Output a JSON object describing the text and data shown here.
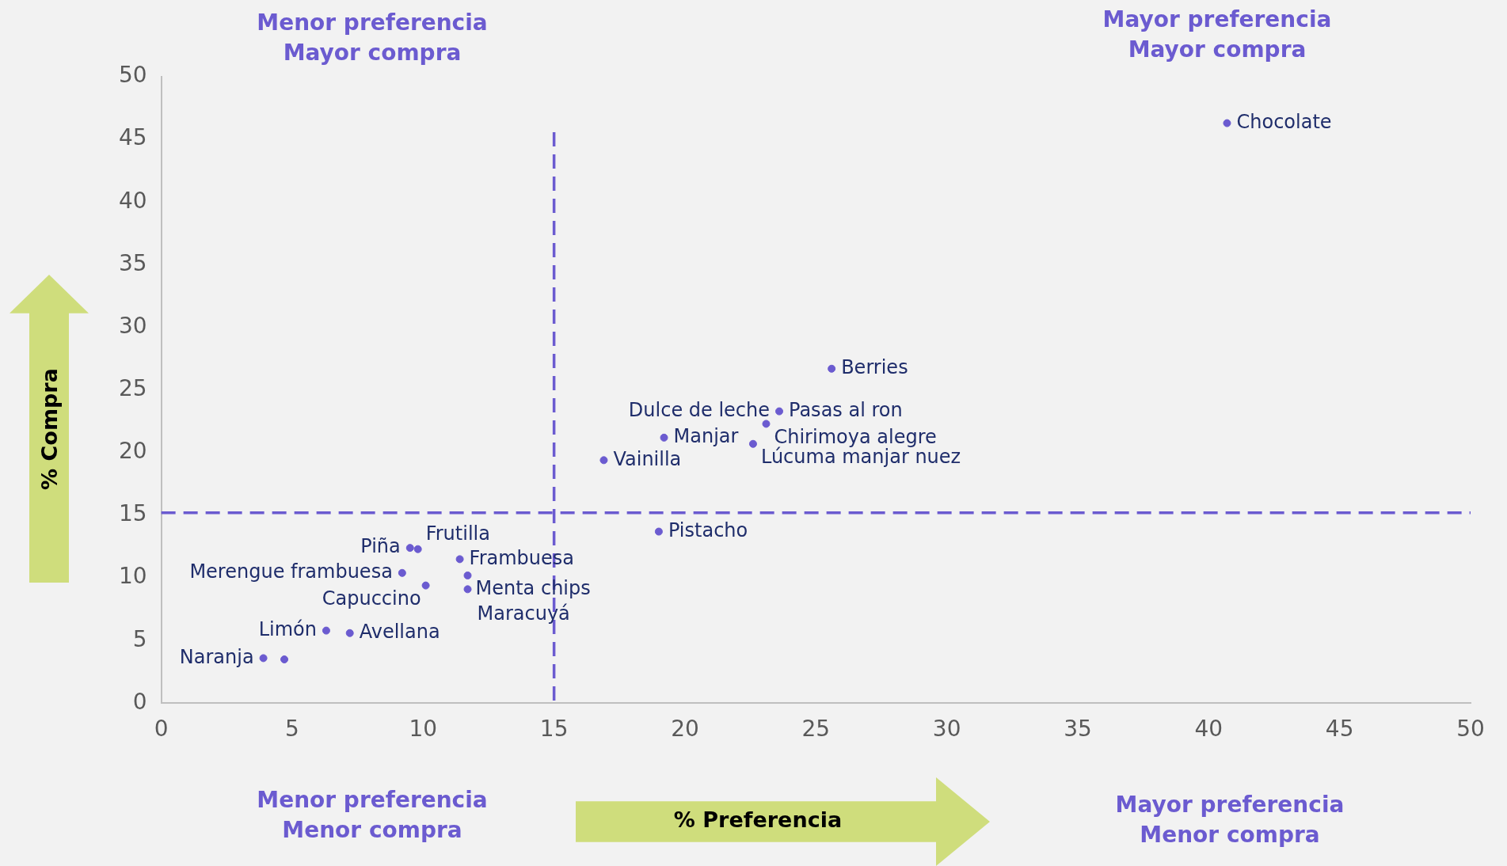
{
  "chart_data": {
    "type": "scatter",
    "xlabel": "% Preferencia",
    "ylabel": "% Compra",
    "x": [
      40.7,
      25.6,
      23.6,
      23.1,
      19.2,
      22.6,
      16.9,
      19.0,
      9.5,
      9.8,
      11.4,
      9.2,
      11.7,
      10.1,
      11.7,
      6.3,
      7.2,
      3.9,
      4.7
    ],
    "series": [
      {
        "color": "#6b5bd0",
        "values": [
          46.3,
          26.7,
          23.3,
          22.3,
          21.2,
          20.7,
          19.4,
          13.7,
          12.4,
          12.3,
          11.5,
          10.4,
          10.2,
          9.4,
          9.1,
          5.8,
          5.6,
          3.6,
          3.5
        ]
      }
    ],
    "annotations": [
      "Menor preferencia\nMayor compra",
      "Mayor preferencia\nMayor compra",
      "Menor preferencia\nMenor compra",
      "Mayor preferencia\nMenor compra",
      {
        "text": "Chocolate",
        "x": 40.7,
        "y": 46.3
      },
      {
        "text": "Berries",
        "x": 25.6,
        "y": 26.7
      },
      {
        "text": "Pasas al ron",
        "x": 23.6,
        "y": 23.3
      },
      {
        "text": "Dulce de leche",
        "x": 23.6,
        "y": 23.3
      },
      {
        "text": "Chirimoya alegre",
        "x": 23.1,
        "y": 22.3
      },
      {
        "text": "Manjar",
        "x": 19.2,
        "y": 21.2
      },
      {
        "text": "Lúcuma manjar nuez",
        "x": 22.6,
        "y": 20.7
      },
      {
        "text": "Vainilla",
        "x": 16.9,
        "y": 19.4
      },
      {
        "text": "Pistacho",
        "x": 19.0,
        "y": 13.7
      },
      {
        "text": "Piña",
        "x": 9.5,
        "y": 12.4
      },
      {
        "text": "Frutilla",
        "x": 9.8,
        "y": 12.3
      },
      {
        "text": "Frambuesa",
        "x": 11.4,
        "y": 11.5
      },
      {
        "text": "Merengue frambuesa",
        "x": 9.2,
        "y": 10.4
      },
      {
        "text": "Menta chips",
        "x": 11.7,
        "y": 10.2
      },
      {
        "text": "Capuccino",
        "x": 10.1,
        "y": 9.4
      },
      {
        "text": "Maracuyá",
        "x": 11.7,
        "y": 9.1
      },
      {
        "text": "Limón",
        "x": 6.3,
        "y": 5.8
      },
      {
        "text": "Avellana",
        "x": 7.2,
        "y": 5.6
      },
      {
        "text": "Naranja",
        "x": 3.9,
        "y": 3.6
      }
    ],
    "ref_lines": [
      {
        "axis": "x",
        "value": 15,
        "color": "#6b5bd0",
        "line_style": "dashed"
      },
      {
        "axis": "y",
        "value": 15.2,
        "color": "#6b5bd0",
        "line_style": "dashed"
      }
    ],
    "xlim": [
      0,
      50
    ],
    "ylim": [
      0,
      50
    ],
    "xticks": [
      0,
      5,
      10,
      15,
      20,
      25,
      30,
      35,
      40,
      45,
      50
    ],
    "yticks": [
      0,
      5,
      10,
      15,
      20,
      25,
      30,
      35,
      40,
      45,
      50
    ],
    "grid": false,
    "legend": false,
    "marker": "circle"
  }
}
